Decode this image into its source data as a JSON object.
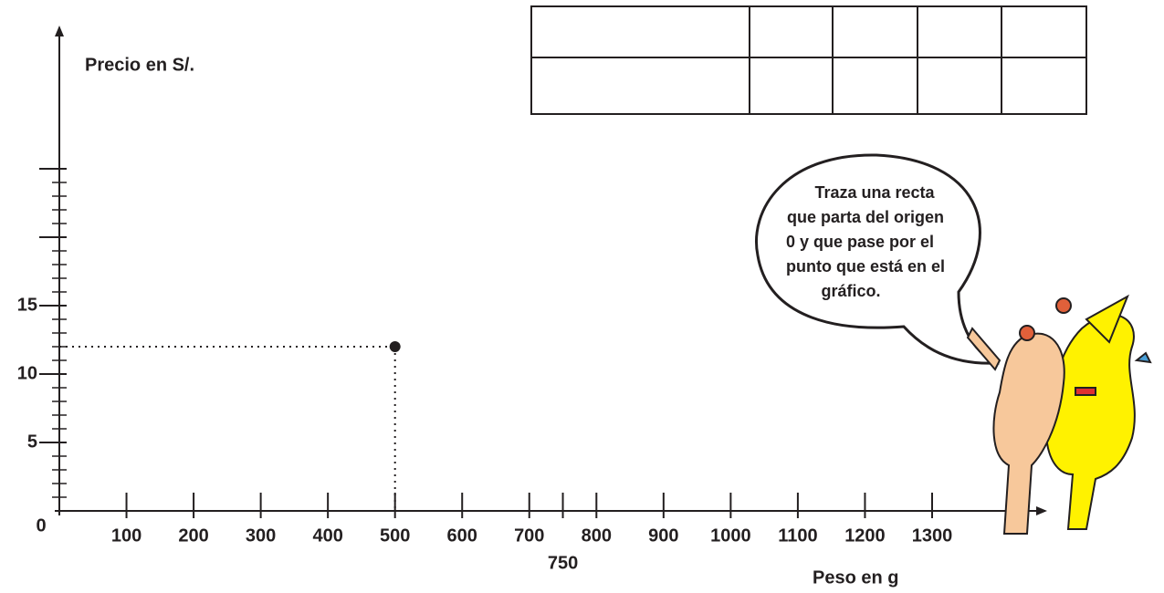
{
  "chart_data": {
    "type": "scatter",
    "x_label": "Peso en g",
    "y_label": "Precio en S/.",
    "x": [
      500
    ],
    "values": [
      12
    ],
    "color": "#231f20",
    "xlim": [
      0,
      1470
    ],
    "ylim": [
      0,
      35
    ],
    "xticks": [
      0,
      100,
      200,
      300,
      400,
      500,
      600,
      700,
      750,
      800,
      900,
      1000,
      1100,
      1200,
      1300
    ],
    "yticks": [
      5,
      10,
      15
    ],
    "y_minor_ticks": [
      1,
      2,
      3,
      4,
      5,
      6,
      7,
      8,
      9,
      10,
      11,
      12,
      13,
      14,
      15,
      16,
      17,
      18,
      19,
      20,
      21,
      22,
      23,
      24,
      25
    ],
    "y_major_ticks": [
      5,
      10,
      15,
      20,
      25
    ],
    "guides": true,
    "annotation": [
      "Traza una recta",
      "que parta del origen",
      "0 y que pase por el",
      "punto que está en el",
      "gráfico."
    ]
  }
}
